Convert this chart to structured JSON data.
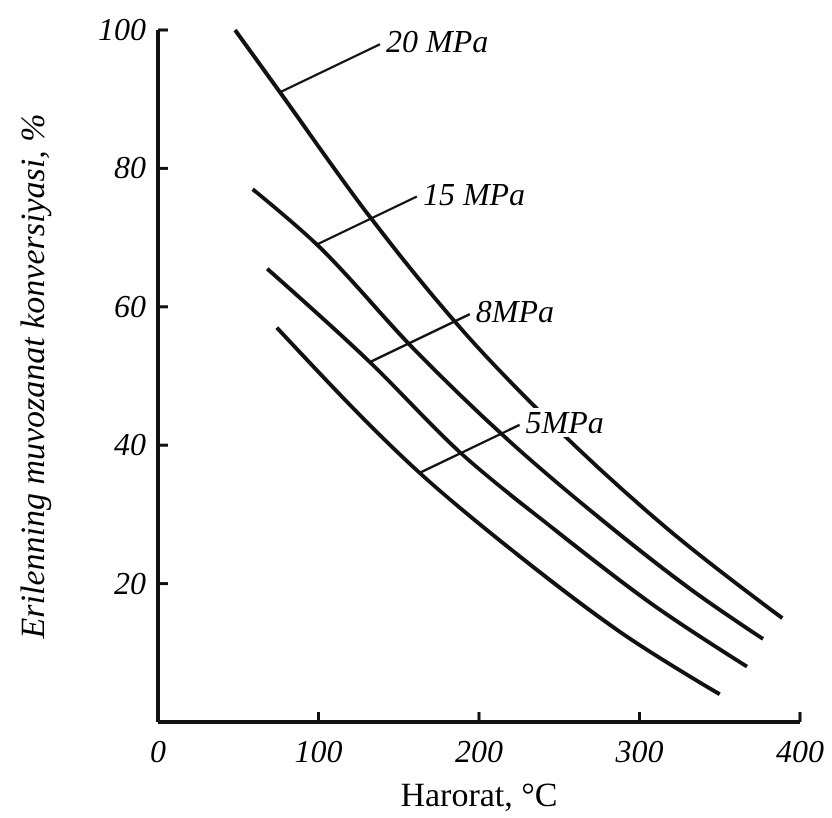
{
  "chart_data": {
    "type": "line",
    "xlabel": "Harorat, °C",
    "ylabel": "Erilenning muvozanat konversiyasi, %",
    "xlim": [
      0,
      400
    ],
    "ylim": [
      0,
      100
    ],
    "xticks": [
      0,
      100,
      200,
      300,
      400
    ],
    "yticks": [
      20,
      40,
      60,
      80,
      100
    ],
    "grid": false,
    "marker": "none",
    "line_style": "solid",
    "series": [
      {
        "color": "#111111",
        "x": [
          48,
          76,
          132,
          192,
          246,
          317,
          389
        ],
        "values": [
          100,
          91,
          73,
          56,
          43,
          28,
          15
        ]
      },
      {
        "color": "#111111",
        "x": [
          59,
          99,
          159,
          217,
          275,
          333,
          377
        ],
        "values": [
          77,
          69,
          54,
          41,
          29.5,
          19,
          12
        ]
      },
      {
        "color": "#111111",
        "x": [
          68,
          132,
          188,
          246,
          308,
          367
        ],
        "values": [
          65.5,
          52,
          39,
          28,
          17,
          8
        ]
      },
      {
        "color": "#111111",
        "x": [
          74,
          163,
          225,
          288,
          350
        ],
        "values": [
          57,
          36,
          24,
          13,
          4
        ]
      }
    ],
    "annotations": [
      {
        "text": "20 MPa",
        "x": 76,
        "y": 91
      },
      {
        "text": "15 MPa",
        "x": 99,
        "y": 69
      },
      {
        "text": "8MPa",
        "x": 132,
        "y": 52
      },
      {
        "text": "5MPa",
        "x": 163,
        "y": 36
      }
    ]
  }
}
